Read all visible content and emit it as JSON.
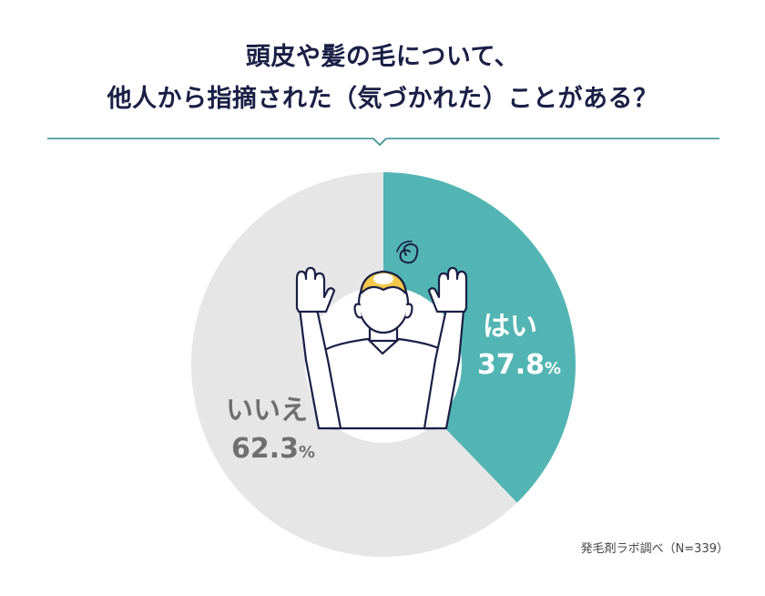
{
  "title": {
    "line1": "頭皮や髪の毛について、",
    "line2": "他人から指摘された（気づかれた）ことがある？"
  },
  "source": "発毛剤ラボ調べ（N=339）",
  "colors": {
    "yes": "#52b5b3",
    "no": "#e6e6e6",
    "title": "#1a1f45",
    "divider": "#2e8b8a",
    "no_label": "#6f6f6f",
    "yes_label": "#ffffff"
  },
  "chart_data": {
    "type": "pie",
    "title": "頭皮や髪の毛について、他人から指摘された（気づかれた）ことがある？",
    "categories": [
      "はい",
      "いいえ"
    ],
    "values": [
      37.8,
      62.3
    ],
    "labels": [
      {
        "name": "はい",
        "value": "37.8",
        "unit": "%"
      },
      {
        "name": "いいえ",
        "value": "62.3",
        "unit": "%"
      }
    ]
  }
}
